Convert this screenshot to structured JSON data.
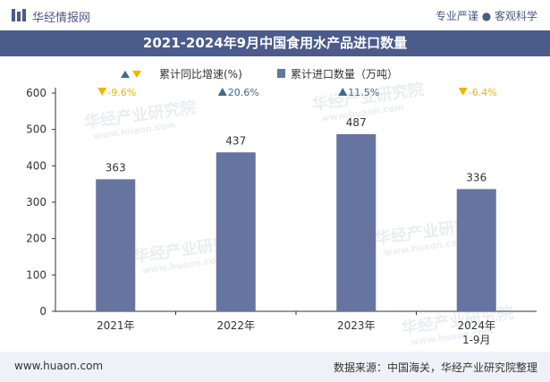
{
  "header": {
    "brand": "华经情报网",
    "slogan": "专业严谨 ● 客观科学",
    "title": "2021-2024年9月中国食用水产品进口数量"
  },
  "footer": {
    "site": "www.huaon.com",
    "source": "数据来源：中国海关，华经产业研究院整理"
  },
  "watermark": {
    "text_cn": "华经产业研究院",
    "text_en": "www.huaon.com"
  },
  "colors": {
    "bar": "#6674a0",
    "up": "#3d6a8f",
    "down": "#f0b400",
    "axis": "#333333"
  },
  "chart_data": {
    "type": "bar",
    "title": "2021-2024年9月中国食用水产品进口数量",
    "categories": [
      "2021年",
      "2022年",
      "2023年",
      "2024年\n1-9月"
    ],
    "series": [
      {
        "name": "累计进口数量（万吨）",
        "values": [
          363,
          437,
          487,
          336
        ]
      }
    ],
    "growth": {
      "name": "累计同比增速(%)",
      "labels": [
        "-9.6%",
        "20.6%",
        "11.5%",
        "-6.4%"
      ],
      "directions": [
        "down",
        "up",
        "up",
        "down"
      ]
    },
    "legend": [
      "累计同比增速(%)",
      "累计进口数量（万吨）"
    ],
    "legend_position": "top-center",
    "ylim": [
      0,
      600
    ],
    "yticks": [
      0,
      100,
      200,
      300,
      400,
      500,
      600
    ],
    "xlabel": "",
    "ylabel": ""
  }
}
